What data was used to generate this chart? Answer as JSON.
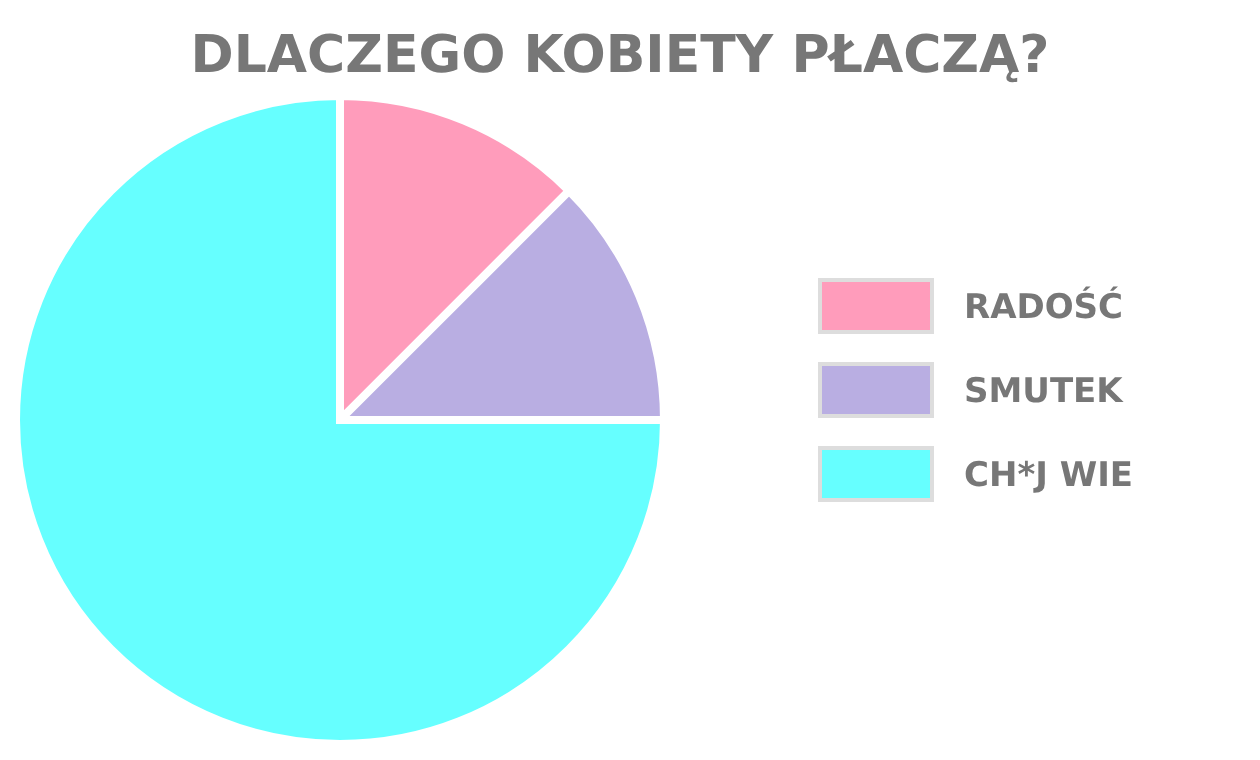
{
  "chart_data": {
    "type": "pie",
    "title": "DLACZEGO KOBIETY PŁACZĄ?",
    "categories": [
      "RADOŚĆ",
      "SMUTEK",
      "CH*J WIE"
    ],
    "values": [
      12.5,
      12.5,
      75
    ],
    "colors": [
      "#ff9cbb",
      "#b9aee2",
      "#66ffff"
    ],
    "legend": "right"
  }
}
